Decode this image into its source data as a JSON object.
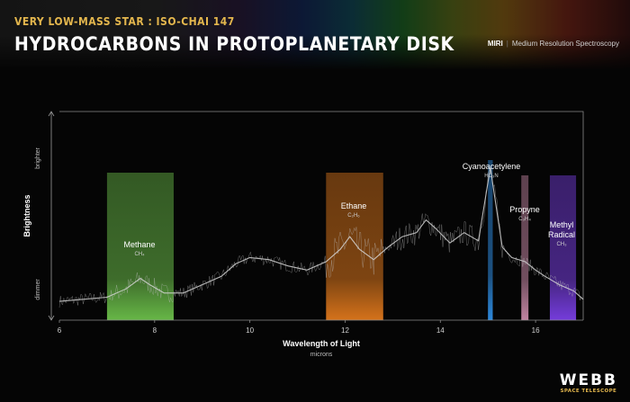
{
  "header": {
    "subtitle": "VERY LOW-MASS STAR : ISO-CHAI 147",
    "title": "HYDROCARBONS IN PROTOPLANETARY DISK",
    "instrument": "MIRI",
    "mode": "Medium Resolution Spectroscopy"
  },
  "logo": {
    "word": "WEBB",
    "sub": "SPACE TELESCOPE"
  },
  "chart_data": {
    "type": "line",
    "xlabel": "Wavelength of Light",
    "xunit": "microns",
    "ylabel": "Brightness",
    "y_high_label": "brighter",
    "y_low_label": "dimmer",
    "xlim": [
      6,
      17
    ],
    "ylim": [
      0,
      1
    ],
    "xticks": [
      6,
      8,
      10,
      12,
      14,
      16
    ],
    "grid": false,
    "legend": "none",
    "bands": [
      {
        "name": "Methane",
        "formula": "CH₄",
        "x0": 7.0,
        "x1": 8.4,
        "color": "#6cc04a"
      },
      {
        "name": "Ethane",
        "formula": "C₂H₆",
        "x0": 11.6,
        "x1": 12.8,
        "color": "#e0781c"
      },
      {
        "name": "Cyanoacetylene",
        "formula": "HC₃N",
        "x0": 15.0,
        "x1": 15.1,
        "color": "#2f8fe6"
      },
      {
        "name": "Propyne",
        "formula": "C₃H₄",
        "x0": 15.7,
        "x1": 15.85,
        "color": "#c98aa8"
      },
      {
        "name": "Methyl Radical",
        "formula": "CH₃",
        "x0": 16.3,
        "x1": 16.85,
        "color": "#7a3fe6"
      }
    ],
    "series": [
      {
        "x": [
          6.0,
          6.5,
          7.0,
          7.4,
          7.7,
          7.9,
          8.2,
          8.6,
          9.0,
          9.4,
          9.7,
          10.0,
          10.4,
          10.8,
          11.2,
          11.6,
          11.9,
          12.1,
          12.3,
          12.6,
          12.9,
          13.2,
          13.5,
          13.7,
          13.9,
          14.2,
          14.5,
          14.8,
          15.05,
          15.3,
          15.5,
          15.78,
          16.0,
          16.2,
          16.5,
          16.8,
          17.0
        ],
        "y": [
          0.09,
          0.1,
          0.11,
          0.15,
          0.2,
          0.17,
          0.13,
          0.13,
          0.17,
          0.21,
          0.27,
          0.3,
          0.29,
          0.26,
          0.24,
          0.28,
          0.34,
          0.4,
          0.34,
          0.29,
          0.35,
          0.4,
          0.42,
          0.48,
          0.44,
          0.37,
          0.42,
          0.38,
          0.73,
          0.35,
          0.3,
          0.28,
          0.24,
          0.21,
          0.17,
          0.14,
          0.1
        ]
      }
    ]
  }
}
